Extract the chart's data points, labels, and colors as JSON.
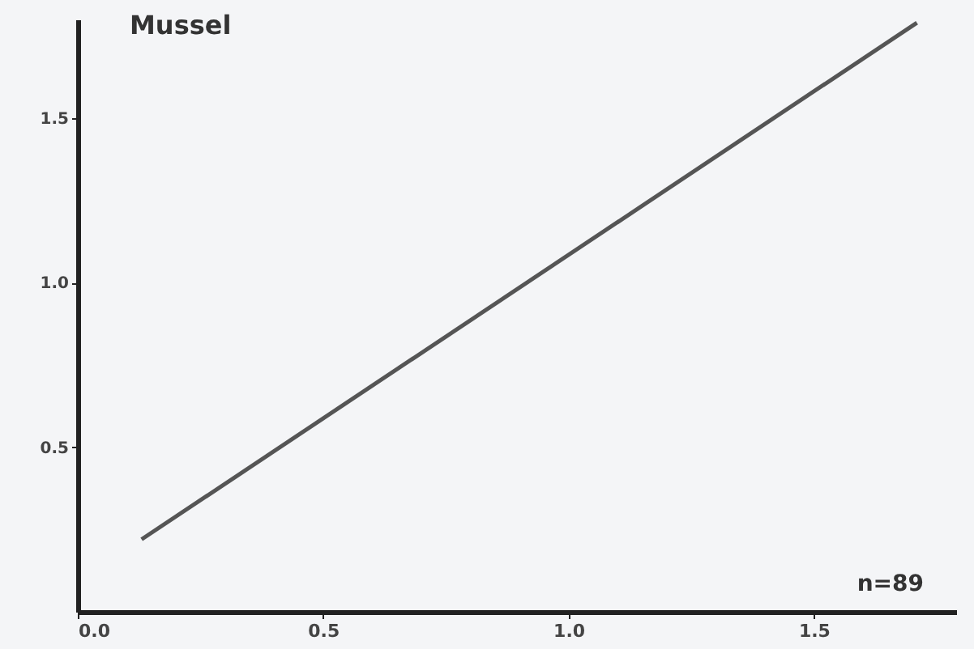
{
  "chart_data": {
    "type": "line",
    "title": "Mussel",
    "x": [
      0.13,
      1.71
    ],
    "series": [
      {
        "color": "#555555",
        "values": [
          0.22,
          1.79
        ]
      }
    ],
    "xlim": [
      0,
      1.79
    ],
    "ylim": [
      0,
      1.8
    ],
    "xticks": [
      {
        "value": 0,
        "label": "0.0"
      },
      0.5,
      {
        "value": 1,
        "label": "1.0"
      },
      1.5
    ],
    "yticks": [
      0.5,
      {
        "value": 1,
        "label": "1.0"
      },
      1.5
    ],
    "annotations": [
      "n=89"
    ],
    "grid": false,
    "marker": "none",
    "line_style": "solid"
  }
}
